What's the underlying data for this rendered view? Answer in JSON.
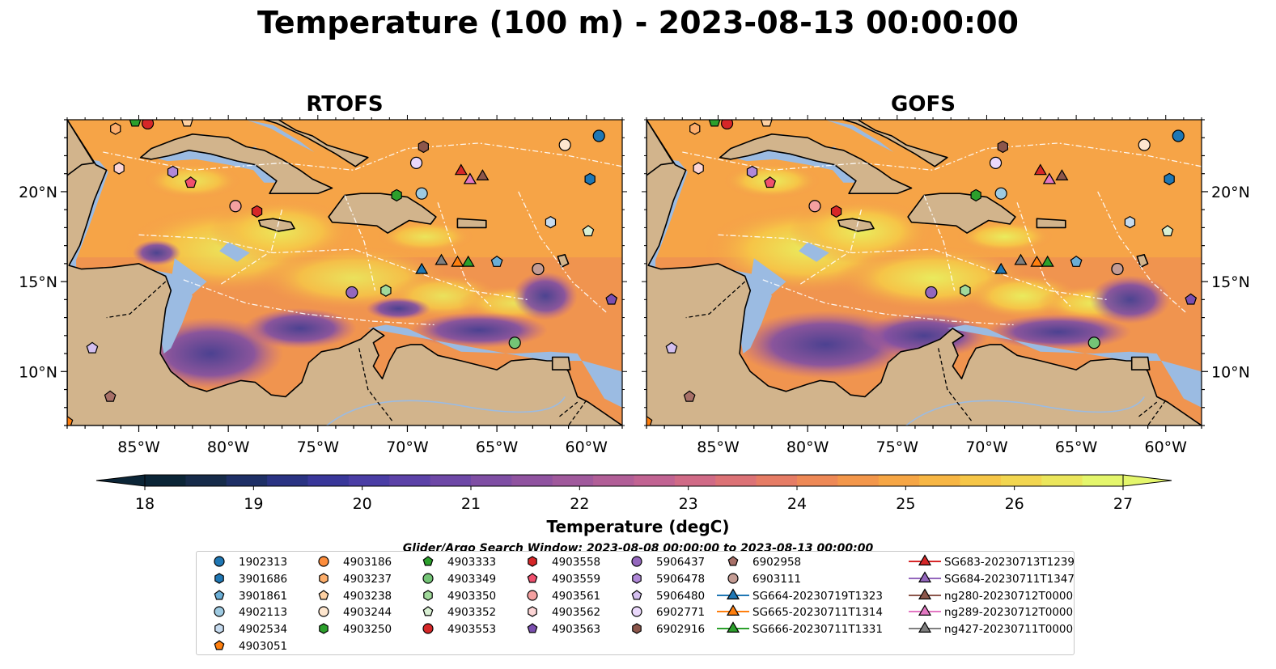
{
  "title": "Temperature (100 m) - 2023-08-13 00:00:00",
  "panels": [
    {
      "title": "RTOFS"
    },
    {
      "title": "GOFS"
    }
  ],
  "axes": {
    "lon_ticks": [
      "85°W",
      "80°W",
      "75°W",
      "70°W",
      "65°W",
      "60°W"
    ],
    "lat_ticks": [
      "20°N",
      "15°N",
      "10°N"
    ],
    "lon_range": [
      -89,
      -58
    ],
    "lat_range": [
      7,
      24
    ]
  },
  "colorbar": {
    "label": "Temperature (degC)",
    "ticks": [
      "18",
      "19",
      "20",
      "21",
      "22",
      "23",
      "24",
      "25",
      "26",
      "27"
    ],
    "min": 18,
    "max": 27,
    "extend": "both",
    "colors": [
      "#0b2537",
      "#162b4a",
      "#1e2f66",
      "#2a3383",
      "#39379a",
      "#4a3da5",
      "#5c42a8",
      "#6e48a7",
      "#7f4ea4",
      "#9053a0",
      "#a0599c",
      "#b15e97",
      "#c16392",
      "#d06a86",
      "#dc7276",
      "#e67c65",
      "#ee8956",
      "#f3974b",
      "#f6a645",
      "#f7b644",
      "#f6c647",
      "#f2d650",
      "#ebe65c",
      "#e4f66c"
    ]
  },
  "search_window": "Glider/Argo Search Window: 2023-08-08 00:00:00 to 2023-08-13 00:00:00",
  "legend": {
    "columns": [
      [
        {
          "label": "1902313",
          "marker": "circle",
          "color": "#1f77b4"
        },
        {
          "label": "3901686",
          "marker": "hexagon",
          "color": "#1f77b4"
        },
        {
          "label": "3901861",
          "marker": "pentagon",
          "color": "#6baed6"
        },
        {
          "label": "4902113",
          "marker": "circle",
          "color": "#9ecae1"
        },
        {
          "label": "4902534",
          "marker": "hexagon",
          "color": "#c6dbef"
        },
        {
          "label": "4903051",
          "marker": "pentagon",
          "color": "#ff7f0e"
        }
      ],
      [
        {
          "label": "4903186",
          "marker": "circle",
          "color": "#fd8d3c"
        },
        {
          "label": "4903237",
          "marker": "hexagon",
          "color": "#fdae6b"
        },
        {
          "label": "4903238",
          "marker": "pentagon",
          "color": "#fdd0a2"
        },
        {
          "label": "4903244",
          "marker": "circle",
          "color": "#fee6ce"
        },
        {
          "label": "4903250",
          "marker": "hexagon",
          "color": "#2ca02c"
        }
      ],
      [
        {
          "label": "4903333",
          "marker": "pentagon",
          "color": "#2ca02c"
        },
        {
          "label": "4903349",
          "marker": "circle",
          "color": "#74c476"
        },
        {
          "label": "4903350",
          "marker": "hexagon",
          "color": "#a1d99b"
        },
        {
          "label": "4903352",
          "marker": "pentagon",
          "color": "#d9f0d3"
        },
        {
          "label": "4903553",
          "marker": "circle",
          "color": "#d62728"
        }
      ],
      [
        {
          "label": "4903558",
          "marker": "hexagon",
          "color": "#d62728"
        },
        {
          "label": "4903559",
          "marker": "pentagon",
          "color": "#f0506e"
        },
        {
          "label": "4903561",
          "marker": "circle",
          "color": "#f4a0a0"
        },
        {
          "label": "4903562",
          "marker": "hexagon",
          "color": "#fcd5d5"
        },
        {
          "label": "4903563",
          "marker": "pentagon",
          "color": "#7b4fb0"
        }
      ],
      [
        {
          "label": "5906437",
          "marker": "circle",
          "color": "#9467bd"
        },
        {
          "label": "5906478",
          "marker": "hexagon",
          "color": "#b088d8"
        },
        {
          "label": "5906480",
          "marker": "pentagon",
          "color": "#d4bfef"
        },
        {
          "label": "6902771",
          "marker": "circle",
          "color": "#ead8fb"
        },
        {
          "label": "6902916",
          "marker": "hexagon",
          "color": "#8c564b"
        }
      ],
      [
        {
          "label": "6902958",
          "marker": "pentagon",
          "color": "#a87068"
        },
        {
          "label": "6903111",
          "marker": "circle",
          "color": "#c49c94"
        },
        {
          "label": "SG664-20230719T1323",
          "marker": "triangle-line",
          "color": "#1f77b4"
        },
        {
          "label": "SG665-20230711T1314",
          "marker": "triangle-line",
          "color": "#ff7f0e"
        },
        {
          "label": "SG666-20230711T1331",
          "marker": "triangle-line",
          "color": "#2ca02c"
        }
      ],
      [
        {
          "label": "SG683-20230713T1239",
          "marker": "triangle-line",
          "color": "#d62728"
        },
        {
          "label": "SG684-20230711T1347",
          "marker": "triangle-line",
          "color": "#9467bd"
        },
        {
          "label": "ng280-20230712T0000",
          "marker": "triangle-line",
          "color": "#8c564b"
        },
        {
          "label": "ng289-20230712T0000",
          "marker": "triangle-line",
          "color": "#e377c2"
        },
        {
          "label": "ng427-20230711T0000",
          "marker": "triangle-line",
          "color": "#7f7f7f"
        }
      ]
    ]
  },
  "observations": [
    {
      "id": "1902313",
      "lon": -59.3,
      "lat": 23.1
    },
    {
      "id": "3901686",
      "lon": -59.8,
      "lat": 20.7
    },
    {
      "id": "3901861",
      "lon": -65.0,
      "lat": 16.1
    },
    {
      "id": "4902113",
      "lon": -69.2,
      "lat": 19.9
    },
    {
      "id": "4902534",
      "lon": -62.0,
      "lat": 18.3
    },
    {
      "id": "4903051",
      "lon": -89.0,
      "lat": 7.2
    },
    {
      "id": "4903186",
      "lon": -62.7,
      "lat": 15.7
    },
    {
      "id": "4903237",
      "lon": -86.3,
      "lat": 23.5
    },
    {
      "id": "4903238",
      "lon": -82.3,
      "lat": 23.9
    },
    {
      "id": "4903244",
      "lon": -61.2,
      "lat": 22.6
    },
    {
      "id": "4903250",
      "lon": -70.6,
      "lat": 19.8
    },
    {
      "id": "4903333",
      "lon": -85.2,
      "lat": 23.9
    },
    {
      "id": "4903349",
      "lon": -64.0,
      "lat": 11.6
    },
    {
      "id": "4903350",
      "lon": -71.2,
      "lat": 14.5
    },
    {
      "id": "4903352",
      "lon": -59.9,
      "lat": 17.8
    },
    {
      "id": "4903553",
      "lon": -84.5,
      "lat": 23.8
    },
    {
      "id": "4903558",
      "lon": -78.4,
      "lat": 18.9
    },
    {
      "id": "4903559",
      "lon": -82.1,
      "lat": 20.5
    },
    {
      "id": "4903561",
      "lon": -79.6,
      "lat": 19.2
    },
    {
      "id": "4903562",
      "lon": -86.1,
      "lat": 21.3
    },
    {
      "id": "4903563",
      "lon": -58.6,
      "lat": 14.0
    },
    {
      "id": "5906437",
      "lon": -73.1,
      "lat": 14.4
    },
    {
      "id": "5906478",
      "lon": -83.1,
      "lat": 21.1
    },
    {
      "id": "5906480",
      "lon": -87.6,
      "lat": 11.3
    },
    {
      "id": "6902771",
      "lon": -69.5,
      "lat": 21.6
    },
    {
      "id": "6902916",
      "lon": -69.1,
      "lat": 22.5
    },
    {
      "id": "6902958",
      "lon": -86.6,
      "lat": 8.6
    },
    {
      "id": "6903111",
      "lon": -62.7,
      "lat": 15.7
    },
    {
      "id": "SG664-20230719T1323",
      "lon": -69.2,
      "lat": 15.7
    },
    {
      "id": "SG665-20230711T1314",
      "lon": -67.2,
      "lat": 16.1
    },
    {
      "id": "SG666-20230711T1331",
      "lon": -66.6,
      "lat": 16.1
    },
    {
      "id": "SG683-20230713T1239",
      "lon": -67.0,
      "lat": 21.2
    },
    {
      "id": "SG684-20230711T1347",
      "lon": -66.5,
      "lat": 20.7
    },
    {
      "id": "ng280-20230712T0000",
      "lon": -65.8,
      "lat": 20.9
    },
    {
      "id": "ng289-20230712T0000",
      "lon": -66.5,
      "lat": 20.7
    },
    {
      "id": "ng427-20230711T0000",
      "lon": -68.1,
      "lat": 16.2
    }
  ],
  "colors": {
    "land": "#d2b48c",
    "shelf": "#9bbbe2",
    "deep_cold": "#0b2537",
    "warm": "#f1a14a",
    "hot": "#e9ef5e"
  }
}
